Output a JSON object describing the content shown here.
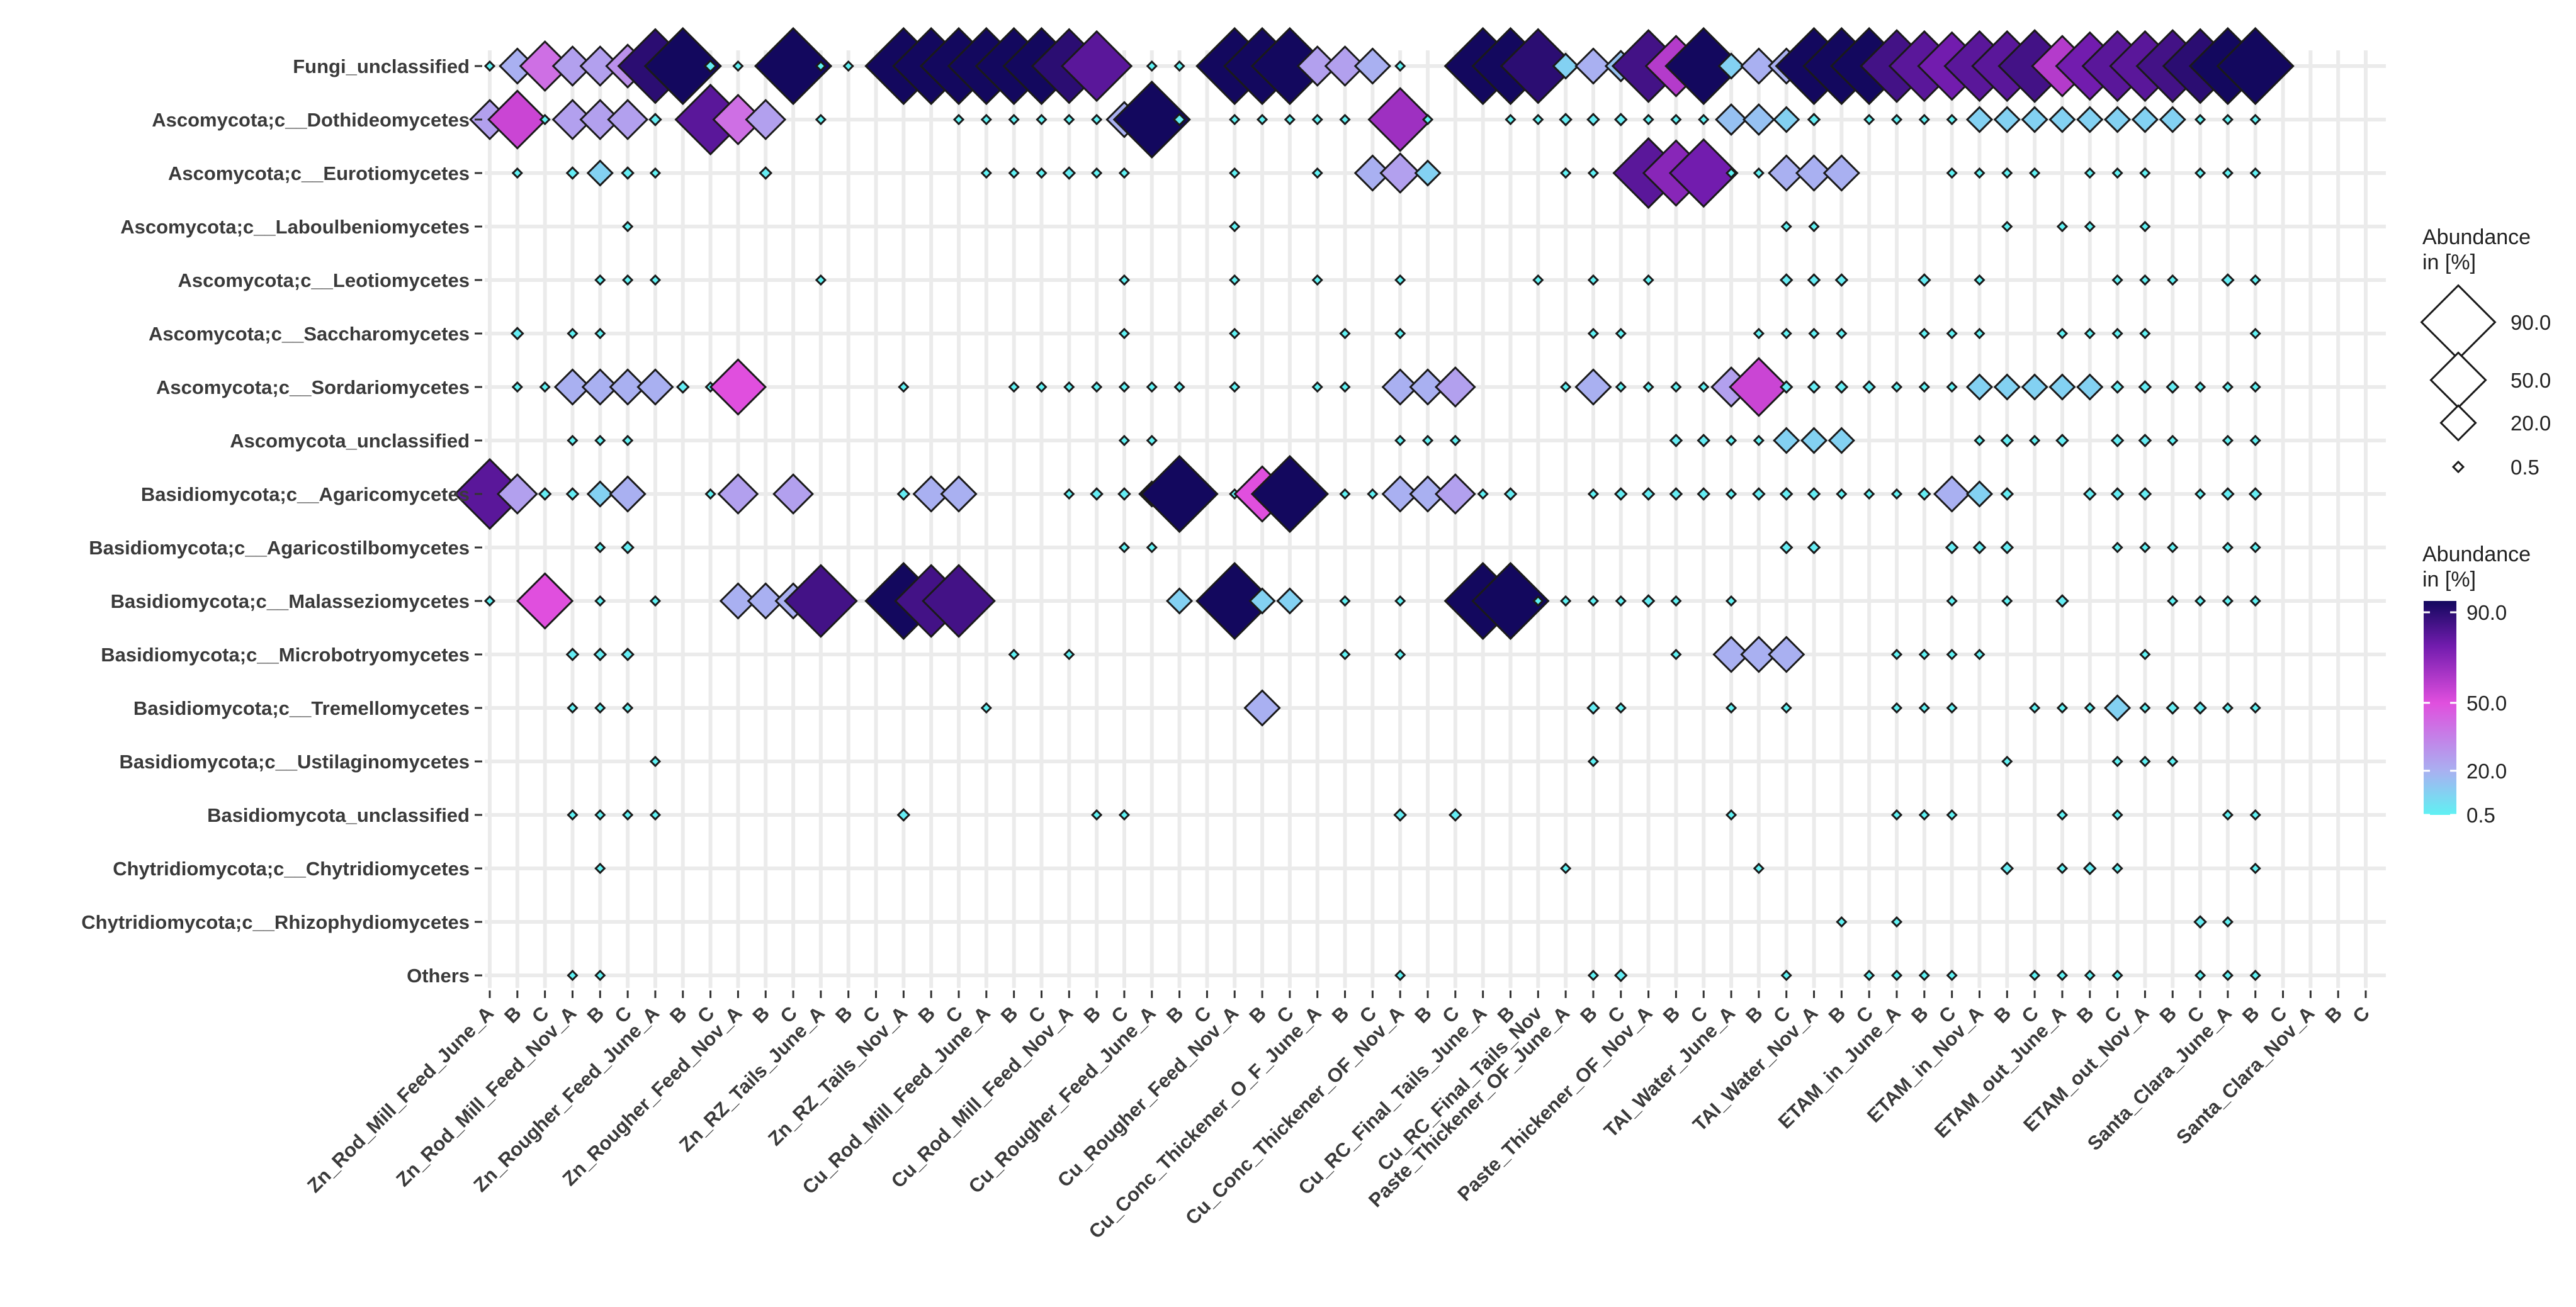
{
  "chart_data": {
    "type": "bubble-matrix",
    "marker": "diamond",
    "title": "",
    "xlabel": "",
    "ylabel": "",
    "rows": [
      "Fungi_unclassified",
      "Ascomycota;c__Dothideomycetes",
      "Ascomycota;c__Eurotiomycetes",
      "Ascomycota;c__Laboulbeniomycetes",
      "Ascomycota;c__Leotiomycetes",
      "Ascomycota;c__Saccharomycetes",
      "Ascomycota;c__Sordariomycetes",
      "Ascomycota_unclassified",
      "Basidiomycota;c__Agaricomycetes",
      "Basidiomycota;c__Agaricostilbomycetes",
      "Basidiomycota;c__Malasseziomycetes",
      "Basidiomycota;c__Microbotryomycetes",
      "Basidiomycota;c__Tremellomycetes",
      "Basidiomycota;c__Ustilaginomycetes",
      "Basidiomycota_unclassified",
      "Chytridiomycota;c__Chytridiomycetes",
      "Chytridiomycota;c__Rhizophydiomycetes",
      "Others"
    ],
    "columns": [
      "Zn_Rod_Mill_Feed_June_A",
      "B",
      "C",
      "Zn_Rod_Mill_Feed_Nov_A",
      "B",
      "C",
      "Zn_Rougher_Feed_June_A",
      "B",
      "C",
      "Zn_Rougher_Feed_Nov_A",
      "B",
      "C",
      "Zn_RZ_Tails_June_A",
      "B",
      "C",
      "Zn_RZ_Tails_Nov_A",
      "B",
      "C",
      "Cu_Rod_Mill_Feed_June_A",
      "B",
      "C",
      "Cu_Rod_Mill_Feed_Nov_A",
      "B",
      "C",
      "Cu_Rougher_Feed_June_A",
      "B",
      "C",
      "Cu_Rougher_Feed_Nov_A",
      "B",
      "C",
      "Cu_Conc_Thickener_O_F_June_A",
      "B",
      "C",
      "Cu_Conc_Thickener_OF_Nov_A",
      "B",
      "C",
      "Cu_RC_Final_Tails_June_A",
      "B",
      "Cu_RC_Final_Tails_Nov",
      "Paste_Thickener_OF_June_A",
      "B",
      "C",
      "Paste_Thickener_OF_Nov_A",
      "B",
      "C",
      "TAI_Water_June_A",
      "B",
      "C",
      "TAI_Water_Nov_A",
      "B",
      "C",
      "ETAM_in_June_A",
      "B",
      "C",
      "ETAM_in_Nov_A",
      "B",
      "C",
      "ETAM_out_June_A",
      "B",
      "C",
      "ETAM_out_Nov_A",
      "B",
      "C",
      "Santa_Clara_June_A",
      "B",
      "C",
      "Santa_Clara_Nov_A",
      "B",
      "C"
    ],
    "values": [
      [
        0.5,
        20,
        40,
        25,
        25,
        30,
        90,
        95,
        2,
        0.5,
        0,
        95,
        0.5,
        0.5,
        0.5,
        95,
        95,
        95,
        95,
        95,
        95,
        90,
        80,
        0,
        0.5,
        0.5,
        0,
        95,
        95,
        95,
        25,
        25,
        20,
        0.5,
        0,
        0,
        95,
        95,
        90,
        10,
        20,
        15,
        85,
        60,
        95,
        10,
        20,
        20,
        95,
        95,
        95,
        85,
        80,
        75,
        80,
        80,
        85,
        60,
        75,
        80,
        80,
        85,
        90,
        95,
        95
      ],
      [
        25,
        55,
        0.5,
        25,
        25,
        25,
        2,
        0,
        80,
        40,
        25,
        0,
        0.5,
        0,
        0,
        0,
        0,
        0.5,
        0.5,
        0.5,
        0.5,
        0.5,
        0.5,
        20,
        95,
        2,
        0,
        0.5,
        0.5,
        0.5,
        0.5,
        0.5,
        0,
        65,
        0.5,
        0,
        0,
        0.5,
        0.5,
        2,
        2,
        2,
        0.5,
        0.5,
        0.5,
        15,
        15,
        10,
        2,
        0,
        0.5,
        0.5,
        0.5,
        0.5,
        10,
        10,
        10,
        10,
        10,
        10,
        10,
        10,
        0.5,
        0.5,
        0.5
      ],
      [
        0,
        0.5,
        0,
        2,
        10,
        2,
        0.5,
        0,
        0,
        0,
        2,
        0,
        0,
        0,
        0,
        0,
        0,
        0,
        0.5,
        0.5,
        0.5,
        2,
        0.5,
        0.5,
        0,
        0,
        0,
        0.5,
        0,
        0,
        0.5,
        0,
        20,
        25,
        10,
        0,
        0,
        0,
        0,
        0.5,
        0.5,
        0,
        80,
        70,
        75,
        0.5,
        0.5,
        20,
        20,
        20,
        0,
        0,
        0,
        0.5,
        0.5,
        0.5,
        0.5,
        0,
        0.5,
        0.5,
        0.5,
        0,
        0.5,
        0.5,
        0.5
      ],
      [
        0,
        0,
        0,
        0,
        0,
        0.5,
        0,
        0,
        0,
        0,
        0,
        0,
        0,
        0,
        0,
        0,
        0,
        0,
        0,
        0,
        0,
        0,
        0,
        0,
        0,
        0,
        0,
        0.5,
        0,
        0,
        0,
        0,
        0,
        0,
        0,
        0,
        0,
        0,
        0,
        0,
        0,
        0,
        0,
        0,
        0,
        0,
        0,
        0.5,
        0.5,
        0,
        0,
        0,
        0,
        0,
        0,
        0.5,
        0,
        0.5,
        0.5,
        0,
        0.5,
        0,
        0,
        0,
        0
      ],
      [
        0,
        0,
        0,
        0,
        0.5,
        0.5,
        0.5,
        0,
        0,
        0,
        0,
        0,
        0.5,
        0,
        0,
        0,
        0,
        0,
        0,
        0,
        0,
        0,
        0,
        0.5,
        0,
        0,
        0,
        0.5,
        0,
        0,
        0.5,
        0,
        0,
        0.5,
        0,
        0,
        0,
        0,
        0.5,
        0,
        0.5,
        0,
        0.5,
        0,
        0,
        0,
        0,
        2,
        2,
        2,
        0,
        0,
        2,
        0,
        0.5,
        0,
        0,
        0,
        0,
        0.5,
        0.5,
        0.5,
        0,
        2,
        0.5
      ],
      [
        0,
        2,
        0,
        0.5,
        0.5,
        0,
        0,
        0,
        0,
        0,
        0,
        0,
        0,
        0,
        0,
        0,
        0,
        0,
        0,
        0,
        0,
        0,
        0,
        0.5,
        0,
        0,
        0,
        0.5,
        0,
        0,
        0,
        0.5,
        0,
        0.5,
        0,
        0,
        0,
        0,
        0,
        0,
        0.5,
        0.5,
        0,
        0,
        0,
        0,
        0.5,
        0.5,
        0.5,
        0.5,
        0,
        0,
        0.5,
        0.5,
        0.5,
        0,
        0,
        0.5,
        0.5,
        0.5,
        0.5,
        0,
        0,
        0,
        0.5
      ],
      [
        0,
        0.5,
        0.5,
        20,
        20,
        20,
        20,
        2,
        0.5,
        50,
        0,
        0,
        0,
        0,
        0,
        0.5,
        0,
        0,
        0,
        0.5,
        0.5,
        0.5,
        0.5,
        0.5,
        0.5,
        0.5,
        0,
        0.5,
        0,
        0,
        0.5,
        0.5,
        0,
        20,
        20,
        25,
        0,
        0,
        0,
        0.5,
        20,
        0.5,
        0.5,
        0.5,
        0.5,
        25,
        55,
        2,
        2,
        2,
        2,
        0.5,
        0.5,
        0.5,
        10,
        10,
        10,
        10,
        10,
        2,
        2,
        2,
        0.5,
        0.5,
        0.5
      ],
      [
        0,
        0,
        0,
        0.5,
        0.5,
        0.5,
        0,
        0,
        0,
        0,
        0,
        0,
        0,
        0,
        0,
        0,
        0,
        0,
        0,
        0,
        0,
        0,
        0,
        0.5,
        0.5,
        0,
        0,
        0,
        0,
        0,
        0,
        0,
        0,
        0.5,
        0.5,
        0.5,
        0,
        0,
        0,
        0,
        0,
        0,
        0,
        2,
        2,
        0.5,
        0.5,
        10,
        10,
        10,
        0,
        0,
        0,
        0,
        0.5,
        2,
        0.5,
        2,
        0,
        2,
        2,
        0.5,
        0,
        0.5,
        0.5
      ],
      [
        80,
        25,
        2,
        2,
        10,
        20,
        0,
        0,
        0.5,
        25,
        0,
        25,
        0,
        0,
        0,
        2,
        20,
        20,
        0,
        0,
        0,
        0.5,
        2,
        2,
        10,
        95,
        0,
        0.5,
        50,
        95,
        0,
        0.5,
        0.5,
        20,
        20,
        25,
        0.5,
        2,
        0,
        0,
        0.5,
        2,
        2,
        2,
        2,
        0.5,
        2,
        2,
        2,
        0.5,
        0.5,
        0.5,
        2,
        20,
        10,
        2,
        0,
        0,
        2,
        2,
        2,
        0,
        0.5,
        2,
        2
      ],
      [
        0,
        0,
        0,
        0,
        0.5,
        2,
        0,
        0,
        0,
        0,
        0,
        0,
        0,
        0,
        0,
        0,
        0,
        0,
        0,
        0,
        0,
        0,
        0,
        0.5,
        0.5,
        0,
        0,
        0,
        0,
        0,
        0,
        0,
        0,
        0,
        0,
        0,
        0,
        0,
        0,
        0,
        0,
        0,
        0,
        0,
        0,
        0,
        0,
        2,
        2,
        0,
        0,
        0,
        0,
        2,
        2,
        2,
        0,
        0,
        0,
        0.5,
        0.5,
        0.5,
        0,
        0.5,
        0.5
      ],
      [
        0.5,
        0,
        50,
        0,
        0.5,
        0,
        0.5,
        0,
        0,
        20,
        20,
        20,
        85,
        0,
        0,
        95,
        85,
        85,
        0,
        0,
        0,
        0,
        0,
        0,
        0,
        10,
        0,
        95,
        10,
        10,
        0,
        0.5,
        0,
        0.5,
        0,
        0,
        95,
        95,
        0.5,
        0.5,
        0.5,
        0.5,
        2,
        0.5,
        0,
        0.5,
        0,
        0,
        0,
        0,
        0,
        0,
        0,
        0.5,
        0,
        0.5,
        0,
        2,
        0,
        0,
        0,
        0.5,
        0.5,
        0.5,
        0.5
      ],
      [
        0,
        0,
        0,
        2,
        2,
        2,
        0,
        0,
        0,
        0,
        0,
        0,
        0,
        0,
        0,
        0,
        0,
        0,
        0,
        0.5,
        0,
        0.5,
        0,
        0,
        0,
        0,
        0,
        0,
        0,
        0,
        0,
        0.5,
        0,
        0.5,
        0,
        0,
        0,
        0,
        0,
        0,
        0,
        0,
        0,
        0.5,
        0,
        20,
        20,
        20,
        0,
        0,
        0,
        0.5,
        0.5,
        0.5,
        0.5,
        0,
        0,
        0,
        0,
        0,
        0.5,
        0,
        0,
        0,
        0
      ],
      [
        0,
        0,
        0,
        0.5,
        0.5,
        0.5,
        0,
        0,
        0,
        0,
        0,
        0,
        0,
        0,
        0,
        0,
        0,
        0,
        0.5,
        0,
        0,
        0,
        0,
        0,
        0,
        0,
        0,
        0,
        20,
        0,
        0,
        0,
        0,
        0,
        0,
        0,
        0,
        0,
        0,
        0,
        2,
        0.5,
        0,
        0,
        0,
        0.5,
        0,
        0.5,
        0,
        0,
        0,
        0.5,
        0.5,
        0.5,
        0,
        0,
        0.5,
        0.5,
        0.5,
        10,
        0.5,
        2,
        2,
        0.5,
        0.5
      ],
      [
        0,
        0,
        0,
        0,
        0,
        0,
        0.5,
        0,
        0,
        0,
        0,
        0,
        0,
        0,
        0,
        0,
        0,
        0,
        0,
        0,
        0,
        0,
        0,
        0,
        0,
        0,
        0,
        0,
        0,
        0,
        0,
        0,
        0,
        0,
        0,
        0,
        0,
        0,
        0,
        0,
        0.5,
        0,
        0,
        0,
        0,
        0,
        0,
        0,
        0,
        0,
        0,
        0,
        0,
        0,
        0,
        0.5,
        0,
        0,
        0,
        0.5,
        0.5,
        0.5,
        0,
        0,
        0
      ],
      [
        0,
        0,
        0,
        0.5,
        0.5,
        0.5,
        0.5,
        0,
        0,
        0,
        0,
        0,
        0,
        0,
        0,
        2,
        0,
        0,
        0,
        0,
        0,
        0,
        0.5,
        0.5,
        0,
        0,
        0,
        0,
        0,
        0,
        0,
        0,
        0,
        2,
        0,
        2,
        0,
        0,
        0,
        0,
        0,
        0,
        0,
        0,
        0,
        0.5,
        0,
        0,
        0,
        0,
        0,
        0.5,
        0.5,
        0.5,
        0,
        0,
        0,
        0.5,
        0,
        0.5,
        0,
        0,
        0,
        0.5,
        0.5
      ],
      [
        0,
        0,
        0,
        0,
        0.5,
        0,
        0,
        0,
        0,
        0,
        0,
        0,
        0,
        0,
        0,
        0,
        0,
        0,
        0,
        0,
        0,
        0,
        0,
        0,
        0,
        0,
        0,
        0,
        0,
        0,
        0,
        0,
        0,
        0,
        0,
        0,
        0,
        0,
        0,
        0.5,
        0,
        0,
        0,
        0,
        0,
        0,
        0.5,
        0,
        0,
        0,
        0,
        0,
        0,
        0,
        0,
        2,
        0,
        0.5,
        2,
        0.5,
        0,
        0,
        0,
        0,
        0.5
      ],
      [
        0,
        0,
        0,
        0,
        0,
        0,
        0,
        0,
        0,
        0,
        0,
        0,
        0,
        0,
        0,
        0,
        0,
        0,
        0,
        0,
        0,
        0,
        0,
        0,
        0,
        0,
        0,
        0,
        0,
        0,
        0,
        0,
        0,
        0,
        0,
        0,
        0,
        0,
        0,
        0,
        0,
        0,
        0,
        0,
        0,
        0,
        0,
        0,
        0,
        0.5,
        0,
        0.5,
        0,
        0,
        0,
        0,
        0,
        0,
        0,
        0,
        0,
        0,
        2,
        0.5,
        0
      ],
      [
        0,
        0,
        0,
        0.5,
        0.5,
        0,
        0,
        0,
        0,
        0,
        0,
        0,
        0,
        0,
        0,
        0,
        0,
        0,
        0,
        0,
        0,
        0,
        0,
        0,
        0,
        0,
        0,
        0,
        0,
        0,
        0,
        0,
        0,
        0.5,
        0,
        0,
        0,
        0,
        0,
        0,
        0.5,
        2,
        0,
        0,
        0,
        0,
        0,
        0.5,
        0,
        0,
        0.5,
        0.5,
        0.5,
        0.5,
        0,
        0,
        0.5,
        0.5,
        0.5,
        0.5,
        0,
        0,
        0.5,
        0.5,
        0.5
      ]
    ],
    "size_legend": {
      "title": "Abundance\nin [%]",
      "breaks": [
        90.0,
        50.0,
        20.0,
        0.5
      ],
      "labels": [
        "90.0",
        "50.0",
        "20.0",
        "0.5"
      ]
    },
    "color_legend": {
      "title": "Abundance\nin [%]",
      "breaks": [
        90.0,
        50.0,
        20.0,
        0.5
      ],
      "labels": [
        "90.0",
        "50.0",
        "20.0",
        "0.5"
      ],
      "range": [
        0.5,
        95
      ],
      "stops": [
        {
          "value": 0.5,
          "color": "#5ff1f3"
        },
        {
          "value": 20,
          "color": "#a9b0f1"
        },
        {
          "value": 50,
          "color": "#e04fde"
        },
        {
          "value": 75,
          "color": "#721cae"
        },
        {
          "value": 95,
          "color": "#13085e"
        }
      ]
    }
  }
}
